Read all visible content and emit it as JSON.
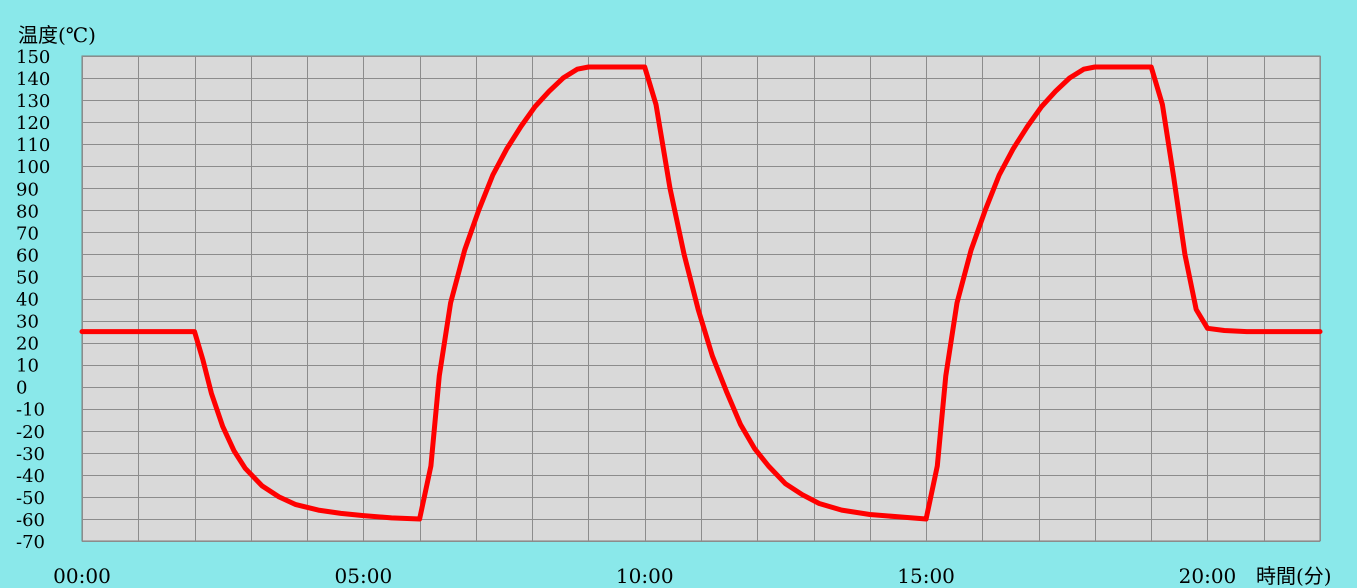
{
  "colors": {
    "background": "#8ae8ea",
    "plot_area": "#d9d9d9",
    "grid": "#8c8c8c",
    "series": "#ff0000"
  },
  "chart_data": {
    "type": "line",
    "ylabel": "温度(℃)",
    "xlabel": "時間(分)",
    "ylim": [
      -70,
      150
    ],
    "ytick_step": 10,
    "xlim": [
      0,
      22
    ],
    "x_unit": "minutes",
    "x_tick_labels": [
      {
        "x": 0,
        "label": "00:00"
      },
      {
        "x": 5,
        "label": "05:00"
      },
      {
        "x": 10,
        "label": "10:00"
      },
      {
        "x": 15,
        "label": "15:00"
      },
      {
        "x": 20,
        "label": "20:00"
      }
    ],
    "x_grid_step": 1,
    "grid": true,
    "legend": "none",
    "series": [
      {
        "points": [
          [
            0,
            25
          ],
          [
            2.0,
            25
          ],
          [
            2.15,
            12
          ],
          [
            2.3,
            -3
          ],
          [
            2.5,
            -18
          ],
          [
            2.7,
            -29
          ],
          [
            2.9,
            -37
          ],
          [
            3.2,
            -45
          ],
          [
            3.5,
            -50
          ],
          [
            3.8,
            -53.5
          ],
          [
            4.2,
            -56
          ],
          [
            4.6,
            -57.5
          ],
          [
            5.0,
            -58.5
          ],
          [
            5.5,
            -59.5
          ],
          [
            6.0,
            -60
          ],
          [
            6.2,
            -36
          ],
          [
            6.35,
            5
          ],
          [
            6.55,
            38
          ],
          [
            6.8,
            62
          ],
          [
            7.05,
            80
          ],
          [
            7.3,
            96
          ],
          [
            7.55,
            108
          ],
          [
            7.8,
            118
          ],
          [
            8.05,
            127
          ],
          [
            8.3,
            134
          ],
          [
            8.55,
            140
          ],
          [
            8.8,
            144
          ],
          [
            9.0,
            145
          ],
          [
            10.0,
            145
          ],
          [
            10.2,
            128
          ],
          [
            10.45,
            90
          ],
          [
            10.7,
            60
          ],
          [
            10.95,
            35
          ],
          [
            11.2,
            14
          ],
          [
            11.45,
            -2
          ],
          [
            11.7,
            -17
          ],
          [
            11.95,
            -28
          ],
          [
            12.2,
            -36
          ],
          [
            12.5,
            -44
          ],
          [
            12.8,
            -49
          ],
          [
            13.1,
            -53
          ],
          [
            13.5,
            -56
          ],
          [
            14.0,
            -58
          ],
          [
            14.5,
            -59
          ],
          [
            15.0,
            -60
          ],
          [
            15.2,
            -36
          ],
          [
            15.35,
            5
          ],
          [
            15.55,
            38
          ],
          [
            15.8,
            62
          ],
          [
            16.05,
            80
          ],
          [
            16.3,
            96
          ],
          [
            16.55,
            108
          ],
          [
            16.8,
            118
          ],
          [
            17.05,
            127
          ],
          [
            17.3,
            134
          ],
          [
            17.55,
            140
          ],
          [
            17.8,
            144
          ],
          [
            18.0,
            145
          ],
          [
            19.0,
            145
          ],
          [
            19.2,
            128
          ],
          [
            19.4,
            95
          ],
          [
            19.6,
            60
          ],
          [
            19.8,
            35
          ],
          [
            20.0,
            26.5
          ],
          [
            20.3,
            25.5
          ],
          [
            20.7,
            25
          ],
          [
            22.0,
            25
          ]
        ]
      }
    ]
  }
}
